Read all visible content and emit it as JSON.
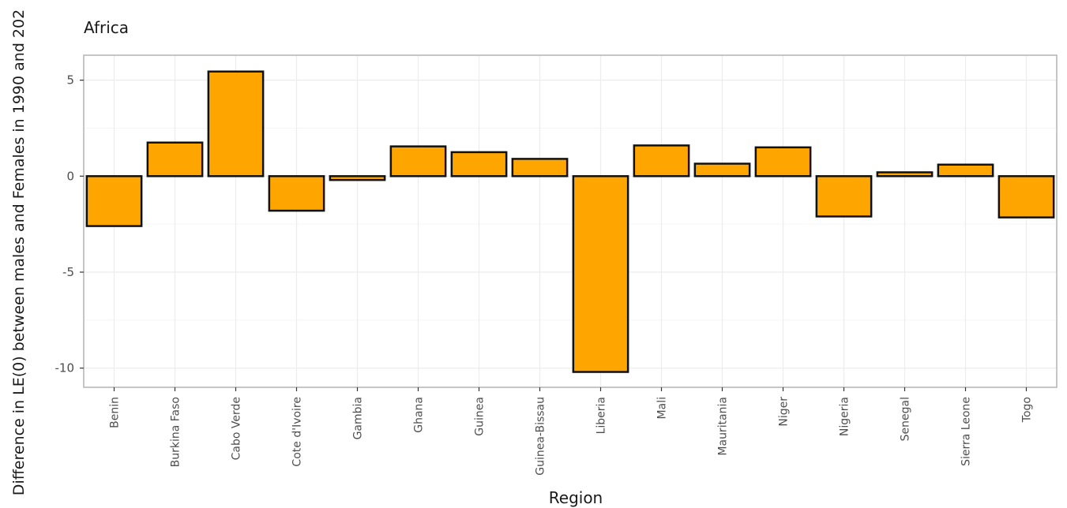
{
  "chart_data": {
    "type": "bar",
    "title": "Africa",
    "xlabel": "Region",
    "ylabel": "Difference in LE(0) between males and Females in 1990 and 202",
    "categories": [
      "Benin",
      "Burkina Faso",
      "Cabo Verde",
      "Cote d'Ivoire",
      "Gambia",
      "Ghana",
      "Guinea",
      "Guinea-Bissau",
      "Liberia",
      "Mali",
      "Mauritania",
      "Niger",
      "Nigeria",
      "Senegal",
      "Sierra Leone",
      "Togo"
    ],
    "values": [
      -2.6,
      1.75,
      5.45,
      -1.8,
      -0.2,
      1.55,
      1.25,
      0.9,
      -10.2,
      1.6,
      0.65,
      1.5,
      -2.1,
      0.2,
      0.6,
      -2.15
    ],
    "ylim": [
      -11,
      6.3
    ],
    "yticks": [
      5,
      0,
      -5,
      -10
    ],
    "ytick_labels": [
      "5",
      "0",
      "-5",
      "-10"
    ],
    "grid": true,
    "legend": "none",
    "colors": {
      "bar_fill": "#FFA500",
      "bar_stroke": "#111111",
      "panel_border": "#b3b3b3",
      "grid_major": "#ececec",
      "grid_minor": "#f5f5f5"
    }
  }
}
